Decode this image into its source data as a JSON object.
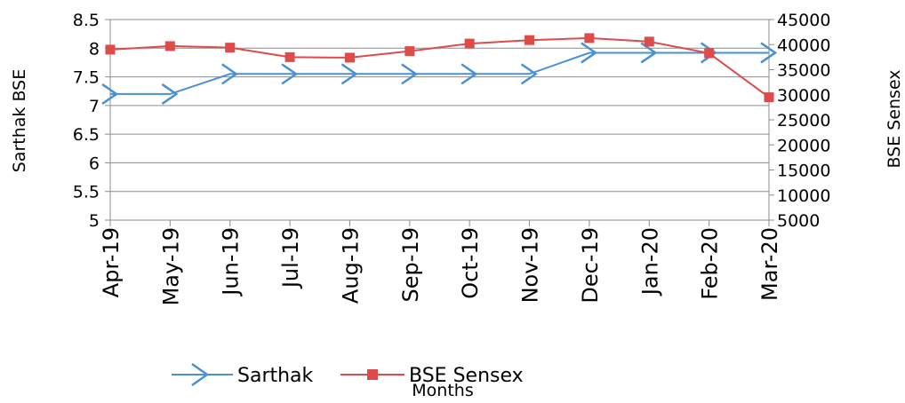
{
  "chart_data": {
    "type": "line",
    "categories": [
      "Apr-19",
      "May-19",
      "Jun-19",
      "Jul-19",
      "Aug-19",
      "Sep-19",
      "Oct-19",
      "Nov-19",
      "Dec-19",
      "Jan-20",
      "Feb-20",
      "Mar-20"
    ],
    "xlabel": "Months",
    "ylabel_left": "Sarthak  BSE",
    "ylabel_right": "BSE Sensex",
    "ylim_left": [
      5,
      8.5
    ],
    "yticks_left": [
      "5",
      "5.5",
      "6",
      "6.5",
      "7",
      "7.5",
      "8",
      "8.5"
    ],
    "ylim_right": [
      5000,
      45000
    ],
    "yticks_right": [
      "5000",
      "10000",
      "15000",
      "20000",
      "25000",
      "30000",
      "35000",
      "40000",
      "45000"
    ],
    "grid": true,
    "legend_position": "bottom",
    "series": [
      {
        "name": "Sarthak",
        "axis": "left",
        "color": "#4a90d2",
        "marker": "arrow",
        "values": [
          7.2,
          7.2,
          7.55,
          7.55,
          7.55,
          7.55,
          7.55,
          7.55,
          7.92,
          7.92,
          7.92,
          7.92
        ]
      },
      {
        "name": "BSE Sensex",
        "axis": "right",
        "color": "#dd4b4b",
        "marker": "square",
        "values": [
          39000,
          39700,
          39400,
          37500,
          37400,
          38700,
          40200,
          40900,
          41300,
          40600,
          38300,
          29500
        ]
      }
    ]
  }
}
